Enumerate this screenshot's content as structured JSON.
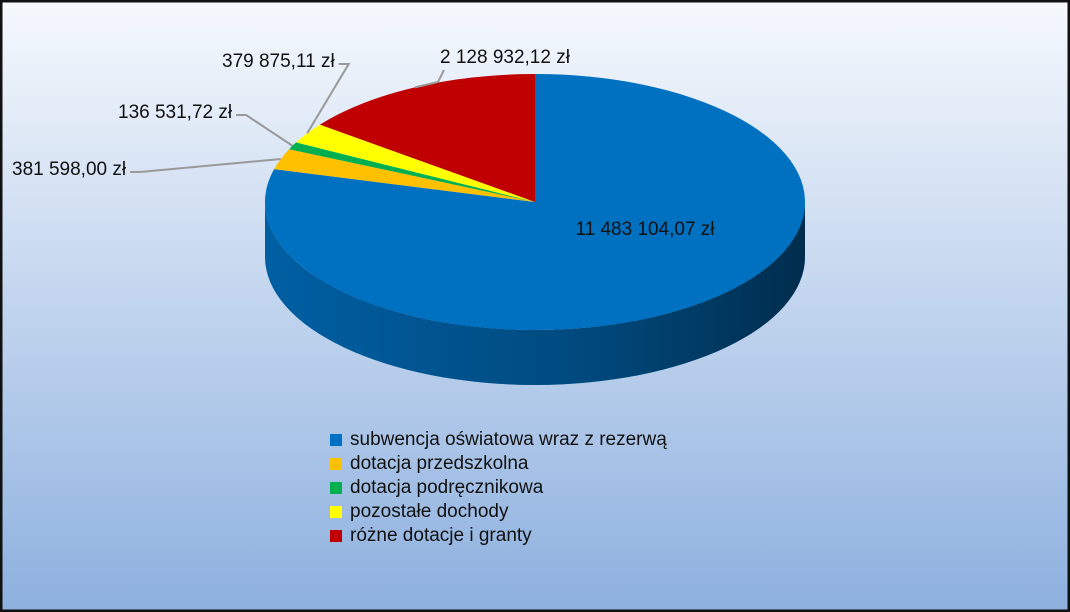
{
  "chart_data": {
    "type": "pie",
    "categories": [
      "subwencja oświatowa wraz z rezerwą",
      "dotacja przedszkolna",
      "dotacja podręcznikowa",
      "pozostałe dochody",
      "różne dotacje i granty"
    ],
    "values": [
      11483104.07,
      381598.0,
      136531.72,
      379875.11,
      2128932.12
    ],
    "value_labels": [
      "11 483 104,07 zł",
      "381 598,00 zł",
      "136 531,72 zł",
      "379 875,11 zł",
      "2 128 932,12 zł"
    ],
    "colors": [
      "#0070c0",
      "#ffc000",
      "#00b050",
      "#ffff00",
      "#c00000"
    ],
    "legend": "bottom"
  }
}
